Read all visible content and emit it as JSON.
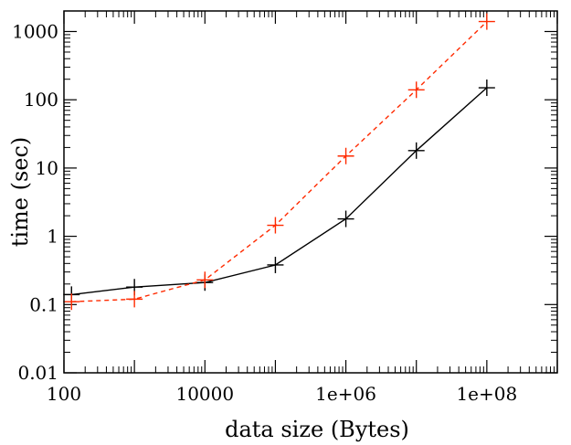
{
  "chart_data": {
    "type": "line",
    "xlabel": "data size (Bytes)",
    "ylabel": "time (sec)",
    "xscale": "log",
    "yscale": "log",
    "xlim": [
      100,
      1000000000
    ],
    "ylim": [
      0.01,
      2000
    ],
    "xticks": [
      {
        "value": 100,
        "label": "100"
      },
      {
        "value": 10000,
        "label": "10000"
      },
      {
        "value": 1000000,
        "label": "1e+06"
      },
      {
        "value": 100000000,
        "label": "1e+08"
      }
    ],
    "yticks": [
      {
        "value": 0.01,
        "label": "0.01"
      },
      {
        "value": 0.1,
        "label": "0.1"
      },
      {
        "value": 1,
        "label": "1"
      },
      {
        "value": 10,
        "label": "10"
      },
      {
        "value": 100,
        "label": "100"
      },
      {
        "value": 1000,
        "label": "1000"
      }
    ],
    "grid": false,
    "legend": "none",
    "series": [
      {
        "color": "#000000",
        "dash": "solid",
        "marker": "plus",
        "x": [
          128,
          1000,
          10000,
          100000,
          1000000,
          10000000,
          100000000
        ],
        "y": [
          0.14,
          0.18,
          0.21,
          0.38,
          1.8,
          18,
          150
        ]
      },
      {
        "color": "#ff2a00",
        "dash": "dashed",
        "marker": "plus",
        "x": [
          128,
          1000,
          10000,
          100000,
          1000000,
          10000000,
          100000000
        ],
        "y": [
          0.11,
          0.12,
          0.23,
          1.45,
          15,
          140,
          1400
        ]
      }
    ]
  }
}
